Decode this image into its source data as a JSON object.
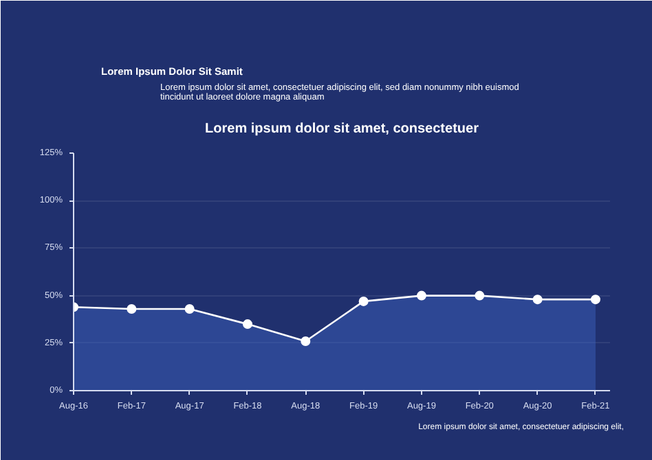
{
  "chart_data": {
    "type": "area",
    "title": "Lorem ipsum dolor sit amet, consectetuer",
    "categories": [
      "Aug-16",
      "Feb-17",
      "Aug-17",
      "Feb-18",
      "Aug-18",
      "Feb-19",
      "Aug-19",
      "Feb-20",
      "Aug-20",
      "Feb-21"
    ],
    "series": [
      {
        "color": "#ffffff",
        "values": [
          44,
          43,
          43,
          35,
          26,
          47,
          50,
          50,
          48,
          48
        ]
      }
    ],
    "ylim": [
      0,
      125
    ],
    "yticks": [
      {
        "value": 0,
        "label": "0%"
      },
      {
        "value": 25,
        "label": "25%"
      },
      {
        "value": 50,
        "label": "50%"
      },
      {
        "value": 75,
        "label": "75%"
      },
      {
        "value": 100,
        "label": "100%"
      },
      {
        "value": 125,
        "label": "125%"
      }
    ],
    "grid": "y",
    "marker": "circle",
    "line_style": "solid",
    "annotations": [
      "Lorem Ipsum Dolor Sit Samit",
      "Lorem ipsum dolor sit amet, consectetuer adipiscing elit, sed diam nonummy nibh euismod tincidunt ut laoreet dolore magna aliquam",
      "Lorem ipsum dolor sit amet, consectetuer adipiscing elit,"
    ]
  }
}
